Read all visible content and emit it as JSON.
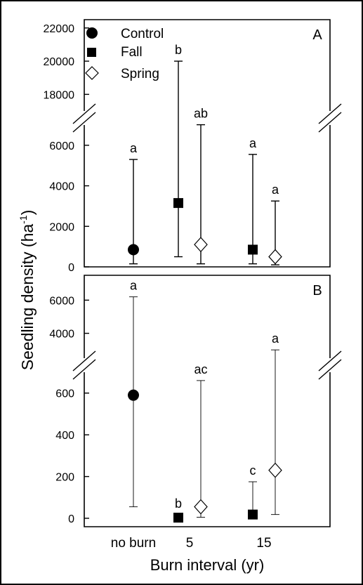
{
  "chart_data": [
    {
      "panel_label": "A",
      "type": "scatter-errorbar",
      "y_segments": [
        {
          "ylim": [
            0,
            7000
          ],
          "ticks": [
            0,
            2000,
            4000,
            6000
          ]
        },
        {
          "ylim": [
            17000,
            22500
          ],
          "ticks": [
            18000,
            20000,
            22000
          ]
        }
      ],
      "series": [
        {
          "name": "Control",
          "color": "#000000",
          "marker": "circle-filled",
          "points": [
            {
              "category": "no burn",
              "y": 850,
              "low": 150,
              "high": 5300,
              "letter": "a"
            }
          ]
        },
        {
          "name": "Fall",
          "color": "#000000",
          "marker": "square-filled",
          "points": [
            {
              "category": "5",
              "y": 3150,
              "low": 500,
              "high": 20000,
              "letter": "b"
            },
            {
              "category": "15",
              "y": 850,
              "low": 150,
              "high": 5550,
              "letter": "a"
            }
          ]
        },
        {
          "name": "Spring",
          "color": "#000000",
          "marker": "diamond-open",
          "points": [
            {
              "category": "5",
              "y": 1100,
              "low": 150,
              "high": 7200,
              "letter": "ab"
            },
            {
              "category": "15",
              "y": 500,
              "low": 100,
              "high": 3250,
              "letter": "a"
            }
          ]
        }
      ],
      "legend": {
        "placement": "top-left",
        "entries": [
          "Control",
          "Fall",
          "Spring"
        ]
      }
    },
    {
      "panel_label": "B",
      "type": "scatter-errorbar",
      "y_segments": [
        {
          "ylim": [
            0,
            700
          ],
          "ticks": [
            0,
            200,
            400,
            600
          ]
        },
        {
          "ylim": [
            2500,
            7500
          ],
          "ticks": [
            4000,
            6000
          ]
        }
      ],
      "series": [
        {
          "name": "Control",
          "color": "#000000",
          "marker": "circle-filled",
          "points": [
            {
              "category": "no burn",
              "y": 590,
              "low": 55,
              "high": 6200,
              "letter": "a"
            }
          ]
        },
        {
          "name": "Fall",
          "color": "#000000",
          "marker": "square-filled",
          "points": [
            {
              "category": "5",
              "y": 3,
              "low": 3,
              "high": 3,
              "letter": "b"
            },
            {
              "category": "15",
              "y": 18,
              "low": 18,
              "high": 175,
              "letter": "c"
            }
          ]
        },
        {
          "name": "Spring",
          "color": "#000000",
          "marker": "diamond-open",
          "points": [
            {
              "category": "5",
              "y": 55,
              "low": 5,
              "high": 660,
              "letter": "ac"
            },
            {
              "category": "15",
              "y": 230,
              "low": 18,
              "high": 3000,
              "letter": "a"
            }
          ]
        }
      ]
    }
  ],
  "axes": {
    "ylabel_main": "Seedling density (ha",
    "ylabel_exponent": "-1",
    "ylabel_close": ")",
    "xlabel": "Burn interval (yr)",
    "categories": [
      "no burn",
      "5",
      "15"
    ]
  }
}
